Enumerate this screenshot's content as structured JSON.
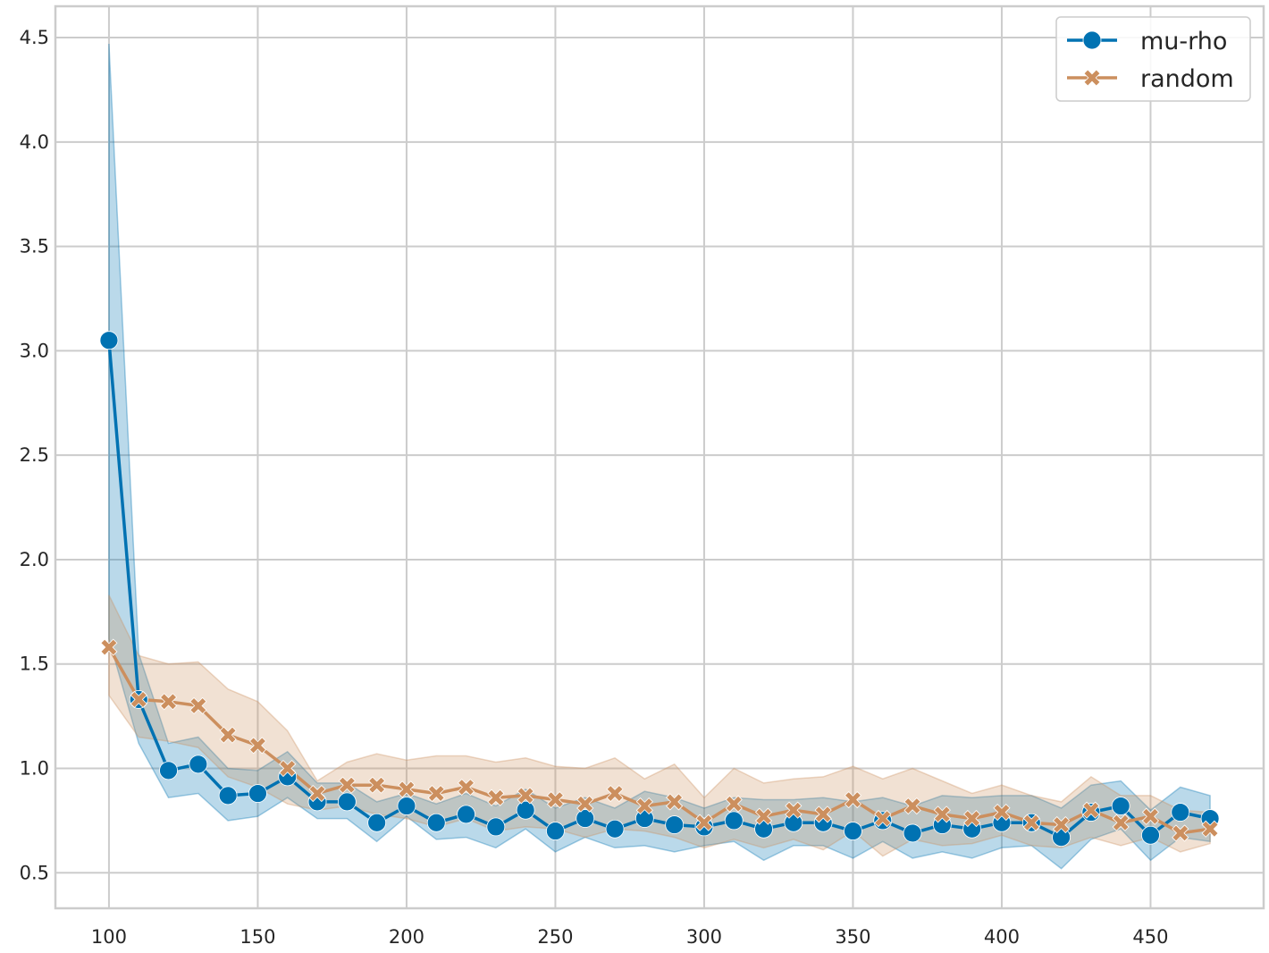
{
  "chart_data": {
    "type": "line",
    "title": "",
    "xlabel": "",
    "ylabel": "",
    "xlim": [
      82,
      488
    ],
    "ylim": [
      0.33,
      4.65
    ],
    "x_ticks": [
      100,
      150,
      200,
      250,
      300,
      350,
      400,
      450
    ],
    "y_ticks": [
      0.5,
      1.0,
      1.5,
      2.0,
      2.5,
      3.0,
      3.5,
      4.0,
      4.5
    ],
    "x_tick_labels": [
      "100",
      "150",
      "200",
      "250",
      "300",
      "350",
      "400",
      "450"
    ],
    "y_tick_labels": [
      "0.5",
      "1.0",
      "1.5",
      "2.0",
      "2.5",
      "3.0",
      "3.5",
      "4.0",
      "4.5"
    ],
    "grid": true,
    "legend_position": "top-right",
    "x": [
      100,
      110,
      120,
      130,
      140,
      150,
      160,
      170,
      180,
      190,
      200,
      210,
      220,
      230,
      240,
      250,
      260,
      270,
      280,
      290,
      300,
      310,
      320,
      330,
      340,
      350,
      360,
      370,
      380,
      390,
      400,
      410,
      420,
      430,
      440,
      450,
      460,
      470
    ],
    "series": [
      {
        "name": "mu-rho",
        "color": "#0072b2",
        "marker": "circle",
        "values": [
          3.05,
          1.33,
          0.99,
          1.02,
          0.87,
          0.88,
          0.96,
          0.84,
          0.84,
          0.74,
          0.82,
          0.74,
          0.78,
          0.72,
          0.8,
          0.7,
          0.76,
          0.71,
          0.76,
          0.73,
          0.72,
          0.75,
          0.71,
          0.74,
          0.74,
          0.7,
          0.75,
          0.69,
          0.73,
          0.71,
          0.74,
          0.74,
          0.67,
          0.79,
          0.82,
          0.68,
          0.79,
          0.76
        ],
        "lower": [
          1.62,
          1.12,
          0.86,
          0.88,
          0.75,
          0.77,
          0.86,
          0.76,
          0.76,
          0.65,
          0.77,
          0.66,
          0.67,
          0.62,
          0.71,
          0.6,
          0.67,
          0.62,
          0.63,
          0.6,
          0.63,
          0.65,
          0.56,
          0.63,
          0.63,
          0.57,
          0.65,
          0.57,
          0.6,
          0.57,
          0.62,
          0.63,
          0.52,
          0.66,
          0.71,
          0.56,
          0.67,
          0.65
        ],
        "upper": [
          4.47,
          1.55,
          1.12,
          1.15,
          1.0,
          0.99,
          1.08,
          0.93,
          0.93,
          0.84,
          0.88,
          0.83,
          0.88,
          0.82,
          0.9,
          0.81,
          0.86,
          0.81,
          0.89,
          0.86,
          0.81,
          0.86,
          0.85,
          0.85,
          0.86,
          0.84,
          0.86,
          0.82,
          0.87,
          0.86,
          0.87,
          0.87,
          0.81,
          0.92,
          0.94,
          0.8,
          0.91,
          0.87
        ]
      },
      {
        "name": "random",
        "color": "#cc8f5e",
        "marker": "x",
        "values": [
          1.58,
          1.33,
          1.32,
          1.3,
          1.16,
          1.11,
          1.0,
          0.88,
          0.92,
          0.92,
          0.9,
          0.88,
          0.91,
          0.86,
          0.87,
          0.85,
          0.83,
          0.88,
          0.82,
          0.84,
          0.74,
          0.83,
          0.77,
          0.8,
          0.78,
          0.85,
          0.76,
          0.82,
          0.78,
          0.76,
          0.79,
          0.74,
          0.73,
          0.8,
          0.74,
          0.77,
          0.69,
          0.71
        ],
        "lower": [
          1.35,
          1.15,
          1.13,
          1.1,
          0.96,
          0.91,
          0.83,
          0.8,
          0.82,
          0.78,
          0.76,
          0.72,
          0.76,
          0.7,
          0.72,
          0.71,
          0.67,
          0.71,
          0.7,
          0.67,
          0.62,
          0.66,
          0.62,
          0.66,
          0.61,
          0.7,
          0.58,
          0.66,
          0.63,
          0.64,
          0.68,
          0.63,
          0.62,
          0.67,
          0.63,
          0.67,
          0.6,
          0.64
        ],
        "upper": [
          1.83,
          1.54,
          1.5,
          1.51,
          1.38,
          1.32,
          1.18,
          0.94,
          1.03,
          1.07,
          1.04,
          1.06,
          1.06,
          1.03,
          1.05,
          1.01,
          1.0,
          1.05,
          0.95,
          1.02,
          0.86,
          1.0,
          0.93,
          0.95,
          0.96,
          1.01,
          0.95,
          1.0,
          0.94,
          0.88,
          0.92,
          0.87,
          0.84,
          0.96,
          0.87,
          0.87,
          0.8,
          0.79
        ]
      }
    ]
  }
}
